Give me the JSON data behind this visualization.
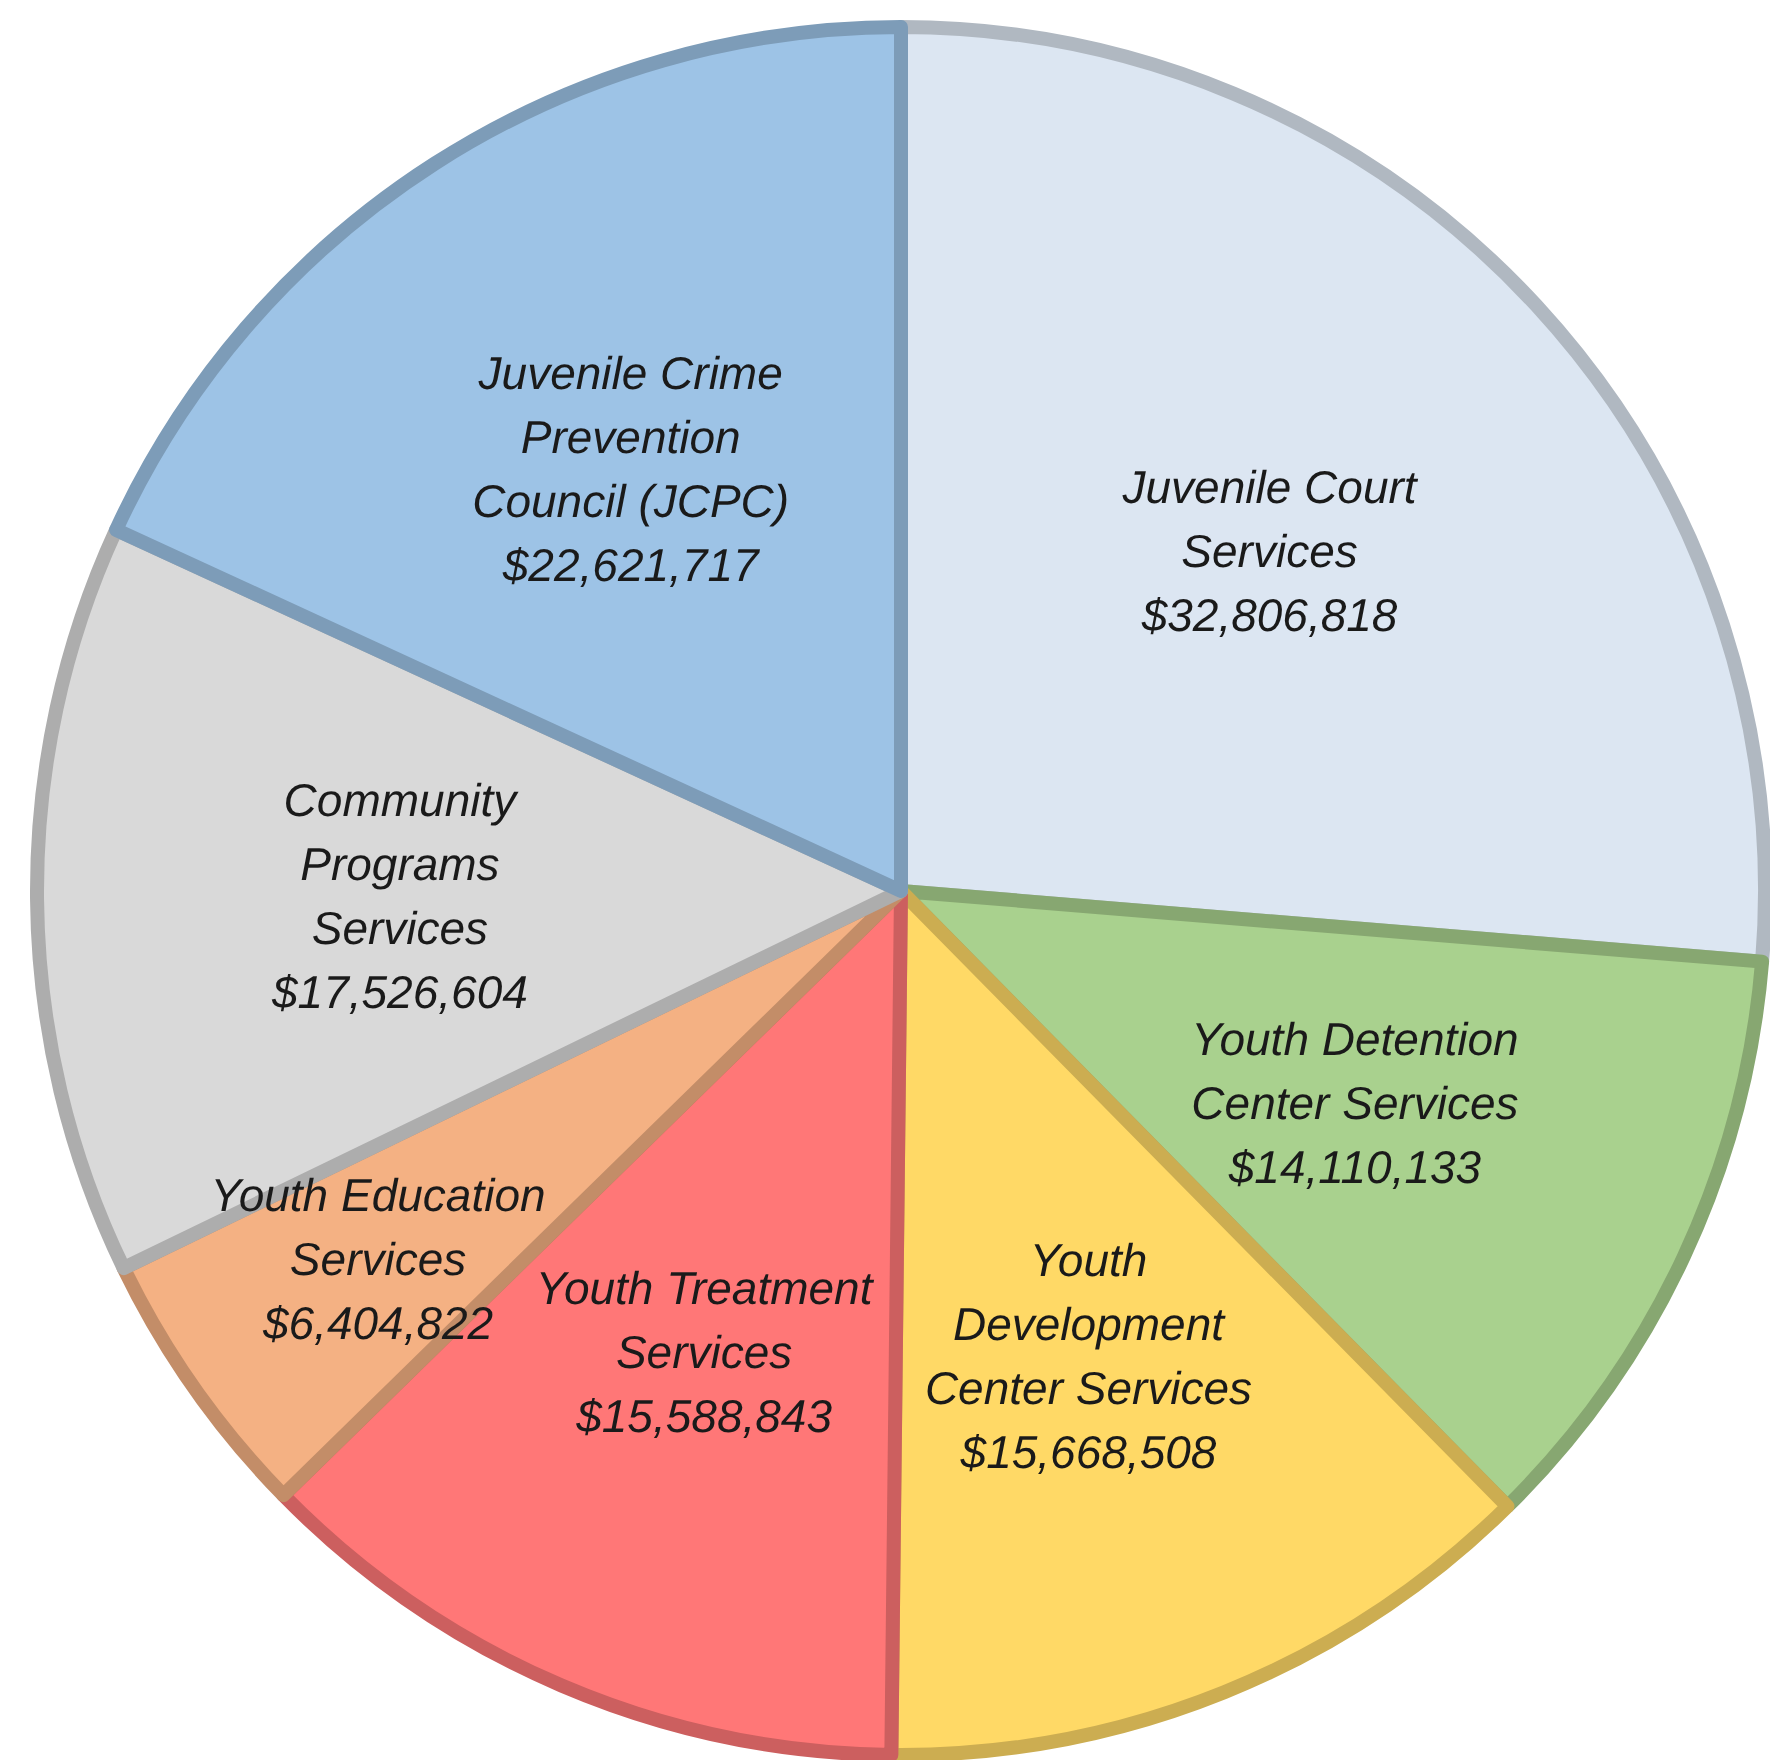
{
  "chart_data": {
    "type": "pie",
    "categories": [
      "Juvenile Court Services",
      "Youth Detention Center Services",
      "Youth Development Center Services",
      "Youth Treatment Services",
      "Youth Education Services",
      "Community Programs Services",
      "Juvenile Crime Prevention Council (JCPC)"
    ],
    "values": [
      32806818,
      14110133,
      15668508,
      15588843,
      6404822,
      17526604,
      22621717
    ],
    "value_labels": [
      "$32,806,818",
      "$14,110,133",
      "$15,668,508",
      "$15,588,843",
      "$6,404,822",
      "$17,526,604",
      "$22,621,717"
    ],
    "colors": [
      "#dce6f2",
      "#a9d18e",
      "#ffd966",
      "#ff7777",
      "#f4b183",
      "#d9d9d9",
      "#9dc3e6"
    ],
    "legend": false
  }
}
